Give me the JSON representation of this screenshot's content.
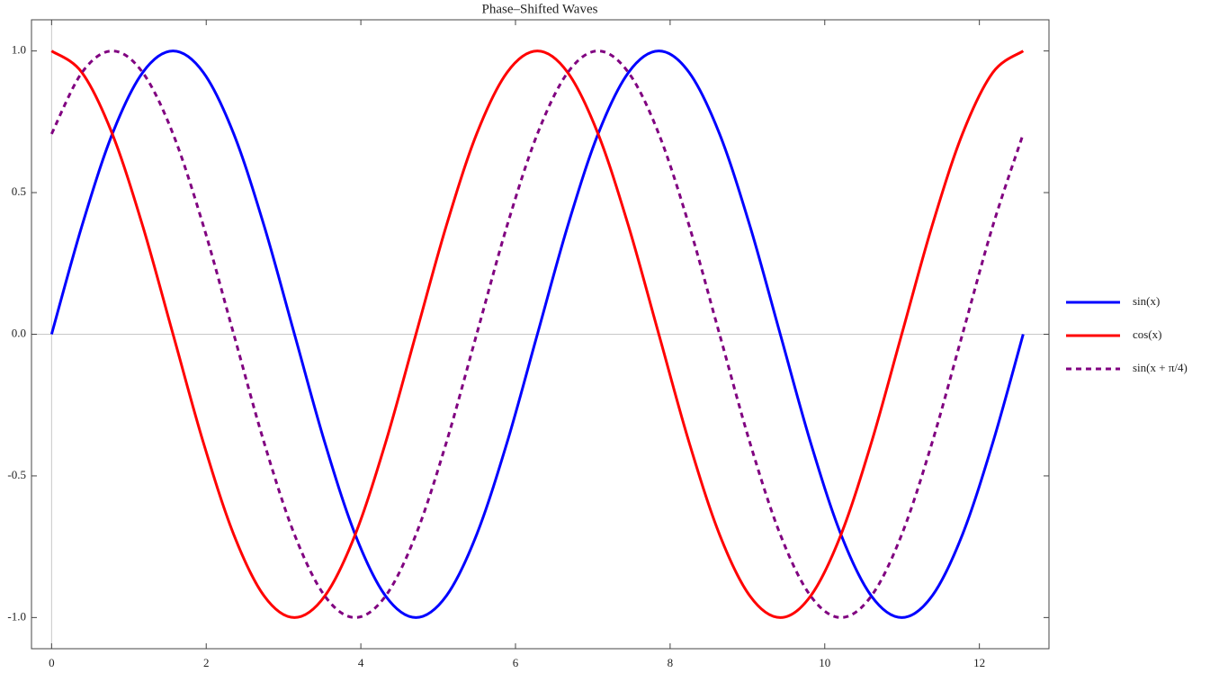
{
  "chart_data": {
    "type": "line",
    "title": "Phase–Shifted Waves",
    "x": [
      0,
      0.3927,
      0.7854,
      1.1781,
      1.5708,
      1.9635,
      2.3562,
      2.7489,
      3.1416,
      3.5343,
      3.927,
      4.3197,
      4.7124,
      5.1051,
      5.4978,
      5.8905,
      6.2832,
      6.6759,
      7.0686,
      7.4613,
      7.854,
      8.2467,
      8.6394,
      9.0321,
      9.4248,
      9.8175,
      10.2102,
      10.6029,
      10.9956,
      11.3883,
      11.781,
      12.1737,
      12.5664
    ],
    "series": [
      {
        "name": "sin(x)",
        "color": "#0000ff",
        "dashed": false,
        "values": [
          0,
          0.3827,
          0.7071,
          0.9239,
          1,
          0.9239,
          0.7071,
          0.3827,
          0,
          -0.3827,
          -0.7071,
          -0.9239,
          -1,
          -0.9239,
          -0.7071,
          -0.3827,
          0,
          0.3827,
          0.7071,
          0.9239,
          1,
          0.9239,
          0.7071,
          0.3827,
          0,
          -0.3827,
          -0.7071,
          -0.9239,
          -1,
          -0.9239,
          -0.7071,
          -0.3827,
          0
        ]
      },
      {
        "name": "cos(x)",
        "color": "#ff0000",
        "dashed": false,
        "values": [
          1,
          0.9239,
          0.7071,
          0.3827,
          0,
          -0.3827,
          -0.7071,
          -0.9239,
          -1,
          -0.9239,
          -0.7071,
          -0.3827,
          0,
          0.3827,
          0.7071,
          0.9239,
          1,
          0.9239,
          0.7071,
          0.3827,
          0,
          -0.3827,
          -0.7071,
          -0.9239,
          -1,
          -0.9239,
          -0.7071,
          -0.3827,
          0,
          0.3827,
          0.7071,
          0.9239,
          1
        ]
      },
      {
        "name": "sin(x + π/4)",
        "color": "#800080",
        "dashed": true,
        "values": [
          0.7071,
          0.9239,
          1,
          0.9239,
          0.7071,
          0.3827,
          0,
          -0.3827,
          -0.7071,
          -0.9239,
          -1,
          -0.9239,
          -0.7071,
          -0.3827,
          0,
          0.3827,
          0.7071,
          0.9239,
          1,
          0.9239,
          0.7071,
          0.3827,
          0,
          -0.3827,
          -0.7071,
          -0.9239,
          -1,
          -0.9239,
          -0.7071,
          -0.3827,
          0,
          0.3827,
          0.7071
        ]
      }
    ],
    "xlim": [
      -0.26,
      12.9
    ],
    "ylim": [
      -1.11,
      1.11
    ],
    "xticks": [
      0,
      2,
      4,
      6,
      8,
      10,
      12
    ],
    "yticks": [
      {
        "value": -1,
        "label": "-1.0"
      },
      -0.5,
      {
        "value": 0,
        "label": "0.0"
      },
      0.5,
      {
        "value": 1,
        "label": "1.0"
      }
    ],
    "legend": "right"
  }
}
